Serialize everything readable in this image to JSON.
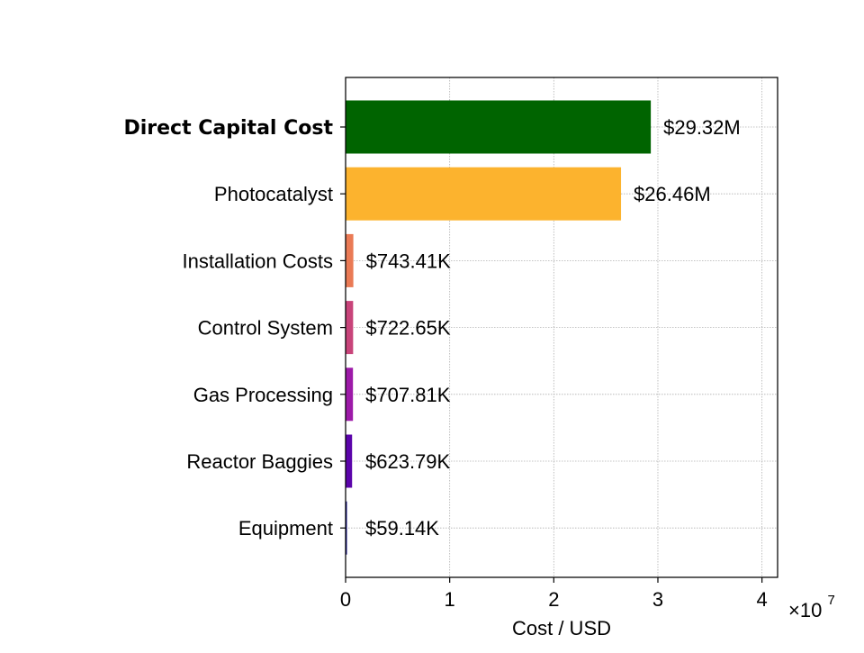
{
  "chart_data": {
    "type": "bar",
    "orientation": "horizontal",
    "categories": [
      "Direct Capital Cost",
      "Photocatalyst",
      "Installation Costs",
      "Control System",
      "Gas Processing",
      "Reactor Baggies",
      "Equipment"
    ],
    "values": [
      29320000,
      26460000,
      743410,
      722650,
      707810,
      623790,
      59140
    ],
    "value_labels": [
      "$29.32M",
      "$26.46M",
      "$743.41K",
      "$722.65K",
      "$707.81K",
      "$623.79K",
      "$59.14K"
    ],
    "bold_category": "Direct Capital Cost",
    "colors": [
      "#006400",
      "#fcb32e",
      "#ea7a55",
      "#c8447a",
      "#9d1aa8",
      "#5b04aa",
      "#0d0887"
    ],
    "xlabel": "Cost / USD",
    "xlim": [
      0,
      41500000
    ],
    "x_ticks": [
      0,
      10000000,
      20000000,
      30000000,
      40000000
    ],
    "x_tick_labels": [
      "0",
      "1",
      "2",
      "3",
      "4"
    ],
    "x_scale_base": "×10",
    "x_scale_exponent": "7",
    "grid": true
  }
}
